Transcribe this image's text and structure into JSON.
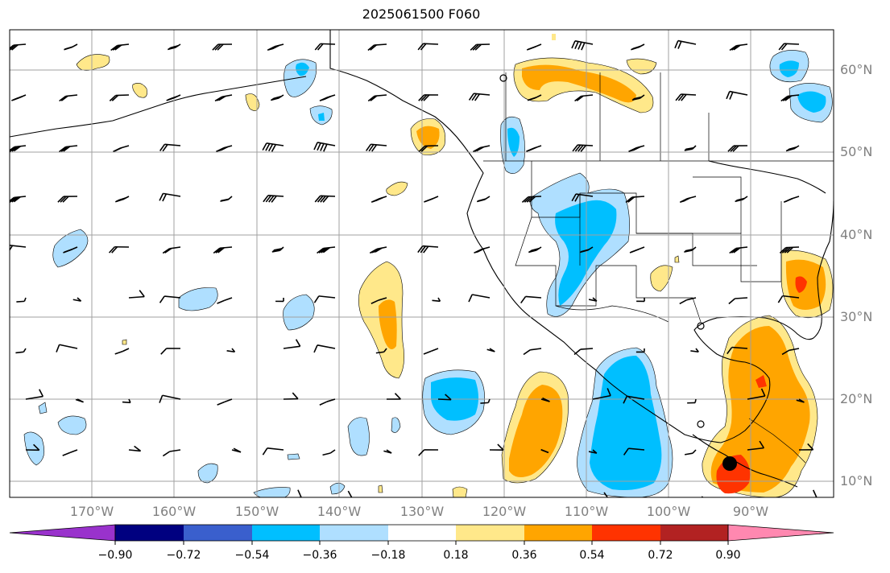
{
  "title": "2025061500 F060",
  "lat_labels": [
    "60°N",
    "50°N",
    "40°N",
    "30°N",
    "20°N",
    "10°N"
  ],
  "lon_labels": [
    "170°W",
    "160°W",
    "150°W",
    "140°W",
    "130°W",
    "120°W",
    "110°W",
    "100°W",
    "90°W"
  ],
  "colorbar": {
    "ticks": [
      "−0.90",
      "−0.72",
      "−0.54",
      "−0.36",
      "−0.18",
      "0.18",
      "0.36",
      "0.54",
      "0.72",
      "0.90"
    ],
    "colors": [
      "#9932cc",
      "#000080",
      "#3a5fcd",
      "#00bfff",
      "#afdfff",
      "#ffffff",
      "#ffe88a",
      "#ffa500",
      "#ff3300",
      "#b22222",
      "#ff88b0"
    ]
  },
  "fill_colors": {
    "light_blue": "#afdfff",
    "blue": "#00bfff",
    "yellow": "#ffe88a",
    "orange": "#ffa500",
    "red": "#ff3300"
  }
}
